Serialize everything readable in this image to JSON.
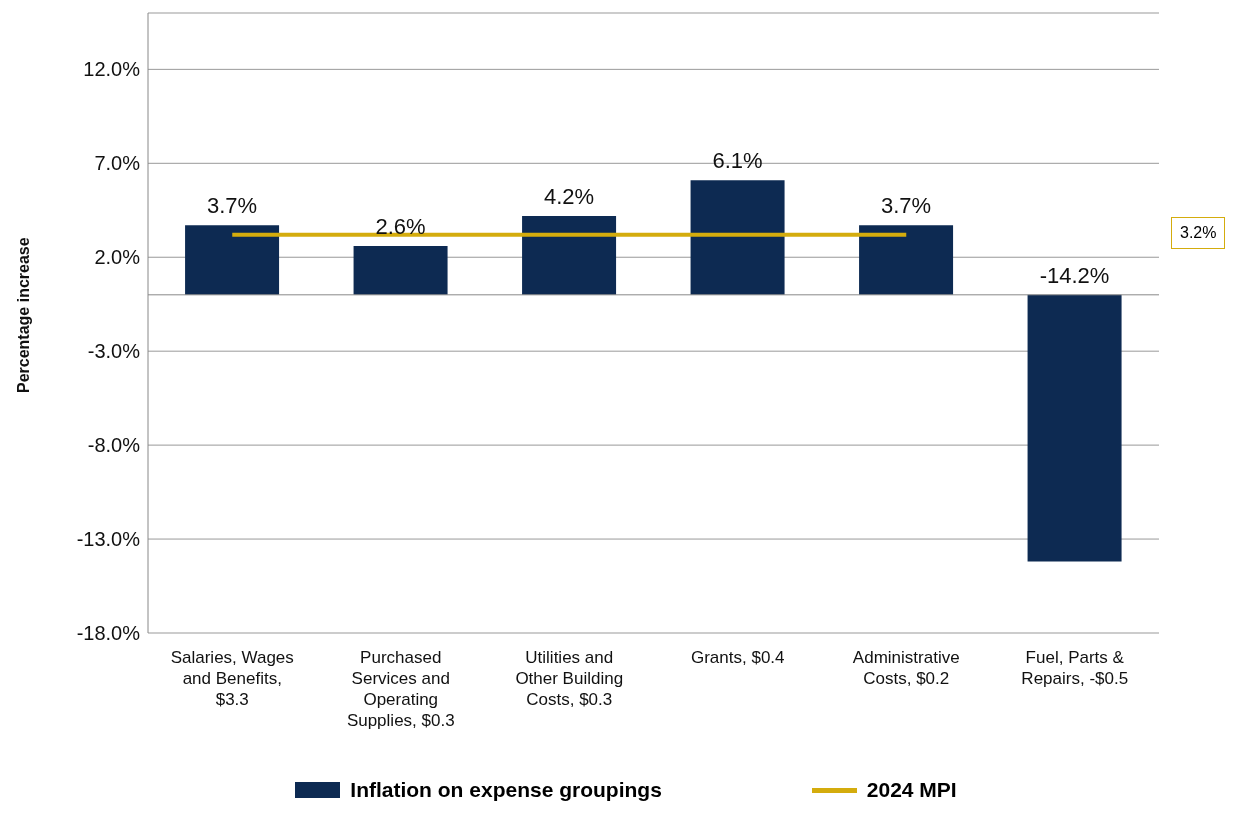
{
  "chart_data": {
    "type": "bar",
    "ylabel": "Percentage increase",
    "categories": [
      "Salaries, Wages and Benefits, $3.3",
      "Purchased Services and Operating Supplies, $0.3",
      "Utilities and Other Building Costs, $0.3",
      "Grants, $0.4",
      "Administrative Costs, $0.2",
      "Fuel, Parts & Repairs, -$0.5"
    ],
    "series": [
      {
        "name": "Inflation on expense groupings",
        "color": "#0d2a52",
        "values": [
          3.7,
          2.6,
          4.2,
          6.1,
          3.7,
          -14.2
        ],
        "value_labels": [
          "3.7%",
          "2.6%",
          "4.2%",
          "6.1%",
          "3.7%",
          "-14.2%"
        ]
      },
      {
        "name": "2024 MPI",
        "type": "line",
        "color": "#d4ac0d",
        "values": [
          3.2,
          3.2,
          3.2,
          3.2,
          3.2,
          null
        ]
      }
    ],
    "annotations": [
      "3.2%"
    ],
    "ylim": [
      -18,
      15
    ],
    "yticks": [
      {
        "value": -18,
        "label": "-18.0%"
      },
      {
        "value": -13,
        "label": "-13.0%"
      },
      {
        "value": -8,
        "label": "-8.0%"
      },
      {
        "value": -3,
        "label": "-3.0%"
      },
      {
        "value": 2,
        "label": "2.0%"
      },
      {
        "value": 7,
        "label": "7.0%"
      },
      {
        "value": 12,
        "label": "12.0%"
      }
    ],
    "grid": "y",
    "legend": "bottom",
    "marker": "none"
  }
}
